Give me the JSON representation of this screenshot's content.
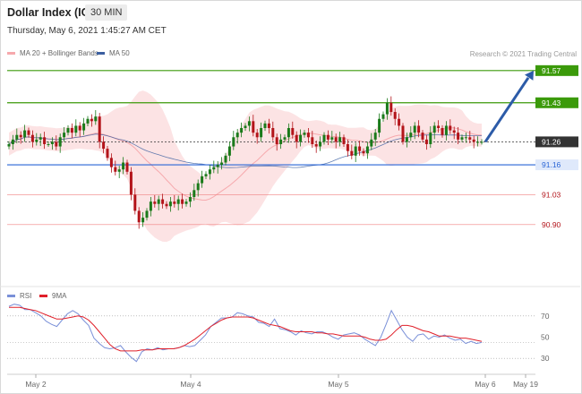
{
  "header": {
    "instrument": "Dollar Index (ICE)",
    "timeframe": "30 MIN",
    "datetime": "Thursday, May 6, 2021 1:45:27 AM CET",
    "copyright": "Research © 2021 Trading Central"
  },
  "legend": {
    "ma20": "MA 20 + Bollinger Bands",
    "ma50": "MA 50",
    "rsi": "RSI",
    "ma9": "9MA"
  },
  "colors": {
    "bollinger": "#f6a9ad",
    "ma50": "#3b5fa0",
    "bull": "#1a7a1a",
    "bear": "#b3141a",
    "resistance": "#3b9a0a",
    "support": "#2864d6",
    "support_secondary": "#f08080",
    "current": "#333333",
    "arrow": "#2c5ba8",
    "rsi": "#7a90d8",
    "rsi_ma": "#e0202a"
  },
  "chart_data": {
    "type": "candlestick",
    "x_labels": [
      "May 2",
      "May 4",
      "May 5",
      "May 6",
      "May 19"
    ],
    "levels": [
      {
        "label": "91.57",
        "value": 91.57,
        "kind": "resistance"
      },
      {
        "label": "91.43",
        "value": 91.43,
        "kind": "resistance"
      },
      {
        "label": "91.26",
        "value": 91.26,
        "kind": "current"
      },
      {
        "label": "91.16",
        "value": 91.16,
        "kind": "support"
      },
      {
        "label": "91.03",
        "value": 91.03,
        "kind": "support_secondary"
      },
      {
        "label": "90.90",
        "value": 90.9,
        "kind": "support_secondary"
      }
    ],
    "forecast": {
      "from": 91.26,
      "to": 91.57
    },
    "ylim": [
      90.65,
      91.62
    ],
    "closes": [
      91.25,
      91.27,
      91.29,
      91.28,
      91.31,
      91.29,
      91.26,
      91.27,
      91.28,
      91.25,
      91.25,
      91.26,
      91.24,
      91.28,
      91.3,
      91.32,
      91.3,
      91.33,
      91.31,
      91.34,
      91.36,
      91.35,
      91.37,
      91.26,
      91.23,
      91.19,
      91.15,
      91.13,
      91.14,
      91.17,
      91.13,
      91.03,
      90.96,
      90.91,
      90.93,
      90.96,
      91.0,
      90.99,
      91.01,
      90.99,
      90.98,
      91.0,
      90.99,
      91.01,
      90.99,
      91.0,
      91.02,
      91.05,
      91.08,
      91.11,
      91.12,
      91.14,
      91.15,
      91.16,
      91.17,
      91.2,
      91.24,
      91.28,
      91.3,
      91.32,
      91.33,
      91.35,
      91.3,
      91.28,
      91.32,
      91.34,
      91.32,
      91.28,
      91.25,
      91.27,
      91.28,
      91.32,
      91.29,
      91.26,
      91.29,
      91.3,
      91.28,
      91.25,
      91.24,
      91.26,
      91.29,
      91.27,
      91.28,
      91.26,
      91.28,
      91.25,
      91.22,
      91.2,
      91.24,
      91.22,
      91.21,
      91.24,
      91.27,
      91.3,
      91.36,
      91.38,
      91.43,
      91.39,
      91.36,
      91.33,
      91.26,
      91.28,
      91.3,
      91.33,
      91.3,
      91.27,
      91.25,
      91.3,
      91.33,
      91.32,
      91.29,
      91.33,
      91.31,
      91.3,
      91.27,
      91.28,
      91.28,
      91.27,
      91.26,
      91.26,
      91.26
    ],
    "rsi": {
      "ticks": [
        30,
        50,
        70
      ],
      "reference_levels": [
        30,
        45,
        70
      ],
      "rsi_values": [
        79,
        81,
        80,
        76,
        76,
        73,
        70,
        65,
        62,
        60,
        66,
        72,
        75,
        72,
        66,
        61,
        49,
        44,
        40,
        39,
        40,
        42,
        36,
        31,
        27,
        36,
        39,
        38,
        40,
        38,
        39,
        39,
        40,
        42,
        41,
        42,
        47,
        52,
        60,
        64,
        68,
        68,
        69,
        73,
        72,
        70,
        69,
        64,
        63,
        60,
        67,
        58,
        57,
        55,
        52,
        56,
        54,
        53,
        55,
        55,
        53,
        50,
        48,
        52,
        53,
        54,
        52,
        48,
        45,
        42,
        50,
        62,
        75,
        66,
        57,
        50,
        46,
        52,
        53,
        48,
        51,
        50,
        52,
        49,
        47,
        48,
        44,
        46,
        44,
        45
      ],
      "ma_values": [
        78,
        78,
        78,
        77,
        76,
        75,
        73,
        71,
        69,
        67,
        67,
        68,
        69,
        70,
        69,
        66,
        61,
        55,
        49,
        43,
        39,
        37,
        37,
        37,
        37,
        38,
        38,
        38,
        39,
        39,
        39,
        39,
        40,
        42,
        45,
        48,
        52,
        56,
        60,
        63,
        66,
        68,
        69,
        69,
        69,
        69,
        68,
        66,
        64,
        62,
        61,
        60,
        58,
        56,
        55,
        55,
        55,
        55,
        54,
        54,
        53,
        53,
        52,
        51,
        51,
        51,
        51,
        50,
        48,
        47,
        47,
        48,
        52,
        57,
        61,
        61,
        60,
        58,
        56,
        55,
        53,
        51,
        51,
        51,
        50,
        49,
        49,
        48,
        47,
        46
      ]
    }
  }
}
